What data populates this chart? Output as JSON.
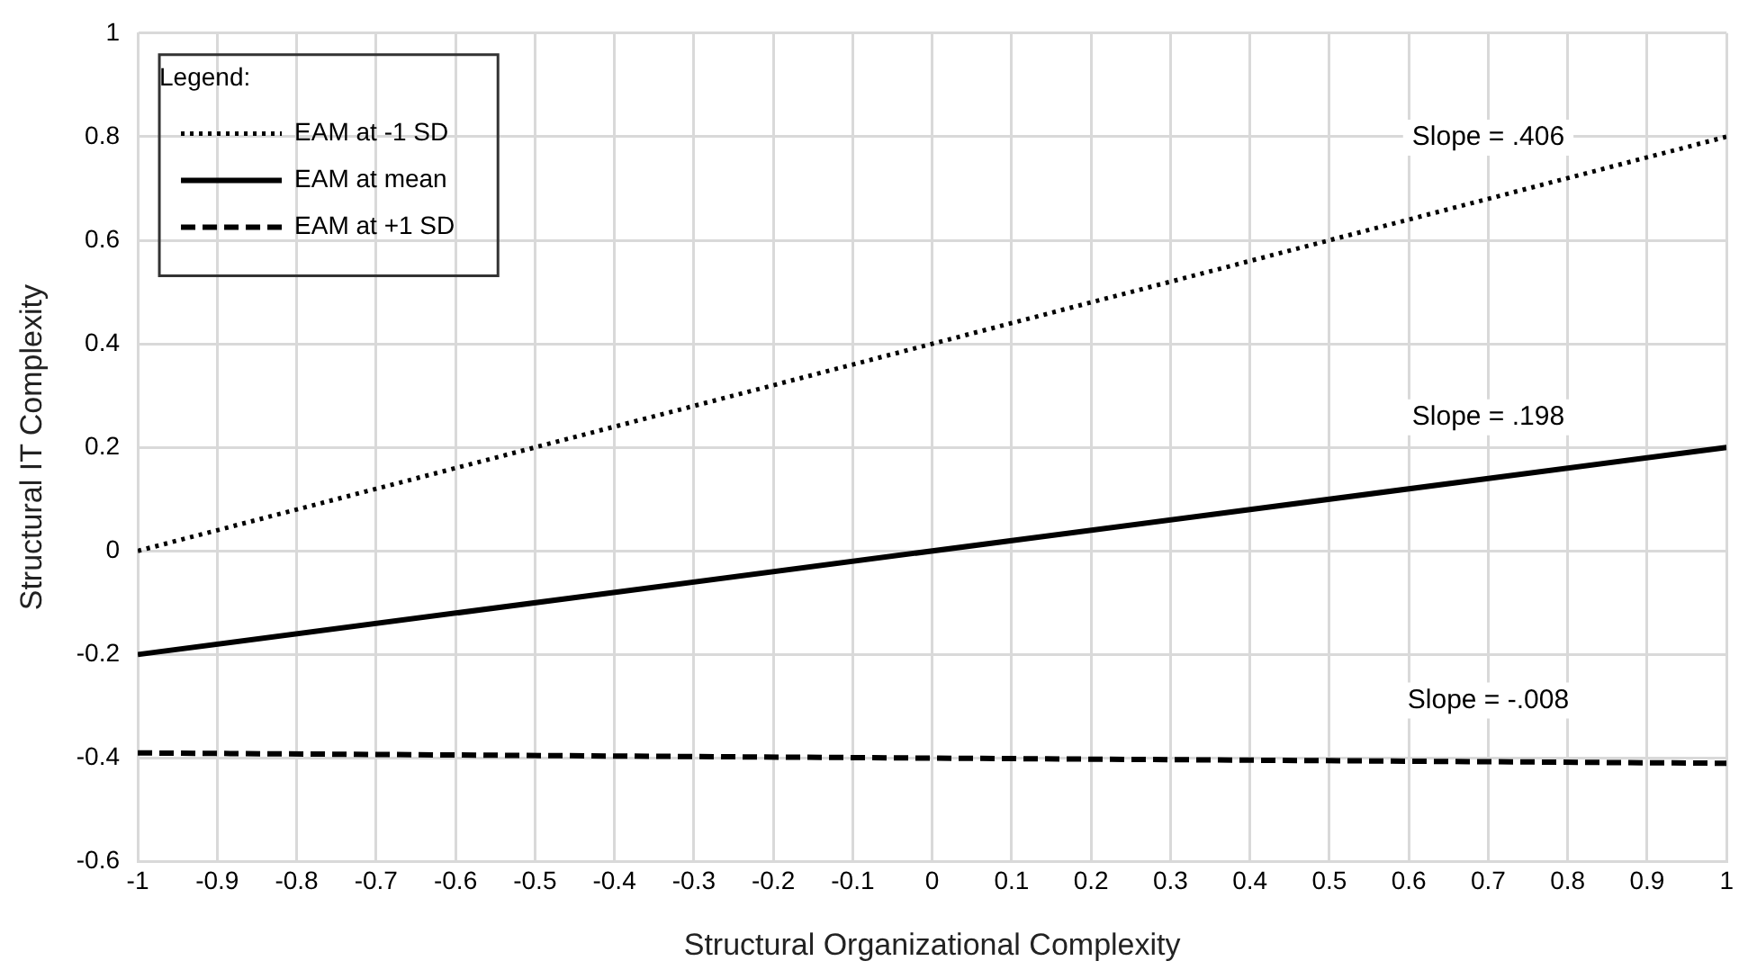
{
  "chart_data": {
    "type": "line",
    "xlabel": "Structural Organizational Complexity",
    "ylabel": "Structural IT Complexity",
    "legend_title": "Legend:",
    "legend": "top left",
    "grid": true,
    "marker": "none",
    "x": [
      -1,
      1
    ],
    "series": [
      {
        "name": "EAM at -1 SD",
        "color": "#000000",
        "line_style": "dotted",
        "values": [
          0,
          0.8
        ]
      },
      {
        "name": "EAM at mean",
        "color": "#000000",
        "line_style": "solid",
        "values": [
          -0.2,
          0.2
        ]
      },
      {
        "name": "EAM at +1 SD",
        "color": "#000000",
        "line_style": "dashed",
        "values": [
          -0.39,
          -0.41
        ]
      }
    ],
    "xlim": [
      -1,
      1
    ],
    "xticks": [
      -1,
      -0.9,
      -0.8,
      -0.7,
      -0.6,
      -0.5,
      -0.4,
      -0.3,
      -0.2,
      -0.1,
      0,
      0.1,
      0.2,
      0.3,
      0.4,
      0.5,
      0.6,
      0.7,
      0.8,
      0.9,
      1
    ],
    "ylim": [
      -0.6,
      1
    ],
    "yticks": [
      -0.6,
      -0.4,
      -0.2,
      0,
      0.2,
      0.4,
      0.6,
      0.8,
      1
    ],
    "annotations": [
      "Slope = .406",
      "Slope = .198",
      "Slope = -.008"
    ]
  }
}
